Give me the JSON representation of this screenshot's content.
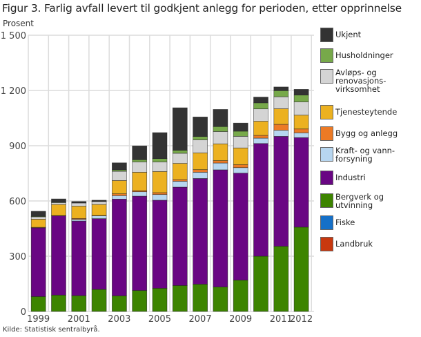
{
  "chart_data": {
    "type": "bar",
    "stacked": true,
    "title": "Figur 3. Farlig avfall levert til godkjent anlegg for perioden, etter opprinnelse",
    "ylabel": "Prosent",
    "xlabel": "",
    "ylim": [
      0,
      1500
    ],
    "yticks": [
      0,
      300,
      600,
      900,
      1200,
      1500
    ],
    "ytick_labels": [
      "0",
      "300",
      "600",
      "900",
      "1 200",
      "1 500"
    ],
    "grid": true,
    "legend_placement": "right",
    "categories": [
      "1999",
      "2000",
      "2001",
      "2002",
      "2003",
      "2004",
      "2005",
      "2006",
      "2007",
      "2008",
      "2009",
      "2010",
      "2011",
      "2012"
    ],
    "xtick_labels": [
      "1999",
      "",
      "2001",
      "",
      "2003",
      "",
      "2005",
      "",
      "2007",
      "",
      "2009",
      "",
      "2011",
      "2012"
    ],
    "series": [
      {
        "name": "Landbruk",
        "color": "#c8380f",
        "values": [
          0,
          0,
          0,
          0,
          0,
          0,
          0,
          0,
          0,
          0,
          0,
          0,
          0,
          0
        ]
      },
      {
        "name": "Fiske",
        "color": "#1570c8",
        "values": [
          0,
          0,
          0,
          0,
          0,
          0,
          0,
          0,
          0,
          0,
          0,
          0,
          0,
          0
        ]
      },
      {
        "name": "Bergverk og\nutvinning",
        "color": "#3d8400",
        "values": [
          81,
          89,
          86,
          120,
          85,
          114,
          126,
          141,
          148,
          133,
          170,
          300,
          354,
          458
        ]
      },
      {
        "name": "Industri",
        "color": "#690683",
        "values": [
          373,
          430,
          405,
          384,
          525,
          512,
          478,
          534,
          574,
          636,
          581,
          612,
          597,
          486
        ]
      },
      {
        "name": "Kraft- og vann-\nforsyning",
        "color": "#b7d6f0",
        "values": [
          0,
          0,
          9,
          15,
          19,
          24,
          31,
          32,
          34,
          37,
          30,
          29,
          33,
          26
        ]
      },
      {
        "name": "Bygg og anlegg",
        "color": "#ec7a25",
        "values": [
          3,
          2,
          5,
          2,
          10,
          6,
          10,
          9,
          14,
          13,
          16,
          15,
          32,
          21
        ]
      },
      {
        "name": "Tjenesteytende",
        "color": "#ecb120",
        "values": [
          44,
          60,
          67,
          60,
          72,
          100,
          115,
          88,
          91,
          91,
          91,
          77,
          85,
          75
        ]
      },
      {
        "name": "Avløps- og\nrenovasjons-\nvirksomhet",
        "color": "#d4d4d4",
        "values": [
          13,
          10,
          17,
          16,
          50,
          56,
          52,
          55,
          71,
          67,
          63,
          67,
          65,
          72
        ]
      },
      {
        "name": "Husholdninger",
        "color": "#77a94a",
        "values": [
          3,
          3,
          1,
          1,
          8,
          12,
          18,
          16,
          18,
          27,
          28,
          33,
          33,
          37
        ]
      },
      {
        "name": "Ukjent",
        "color": "#333333",
        "values": [
          27,
          17,
          7,
          6,
          38,
          75,
          141,
          231,
          106,
          93,
          44,
          31,
          20,
          31
        ]
      }
    ]
  },
  "source": "Kilde: Statistisk sentralbyrå."
}
